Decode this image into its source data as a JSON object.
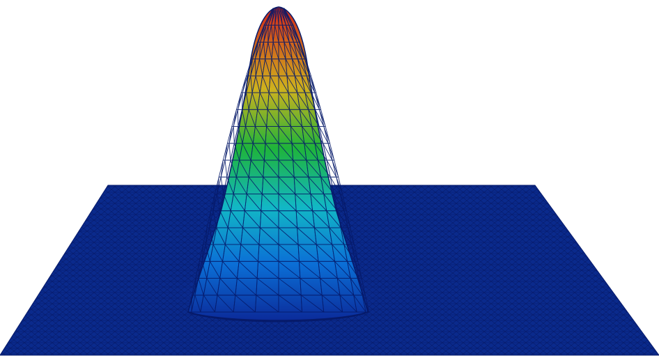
{
  "scene": {
    "description_visible_text": "",
    "colors": {
      "background": "#ffffff",
      "plane": "#0a2a8c",
      "mesh_lines": "#06145a",
      "peak_low": "#0a2a8c",
      "peak_mid_low": "#0aa6c8",
      "peak_mid": "#1fb23a",
      "peak_mid_high": "#d6b21a",
      "peak_high": "#d8281a"
    },
    "surface": "gaussian-peak-on-triangulated-mesh"
  }
}
